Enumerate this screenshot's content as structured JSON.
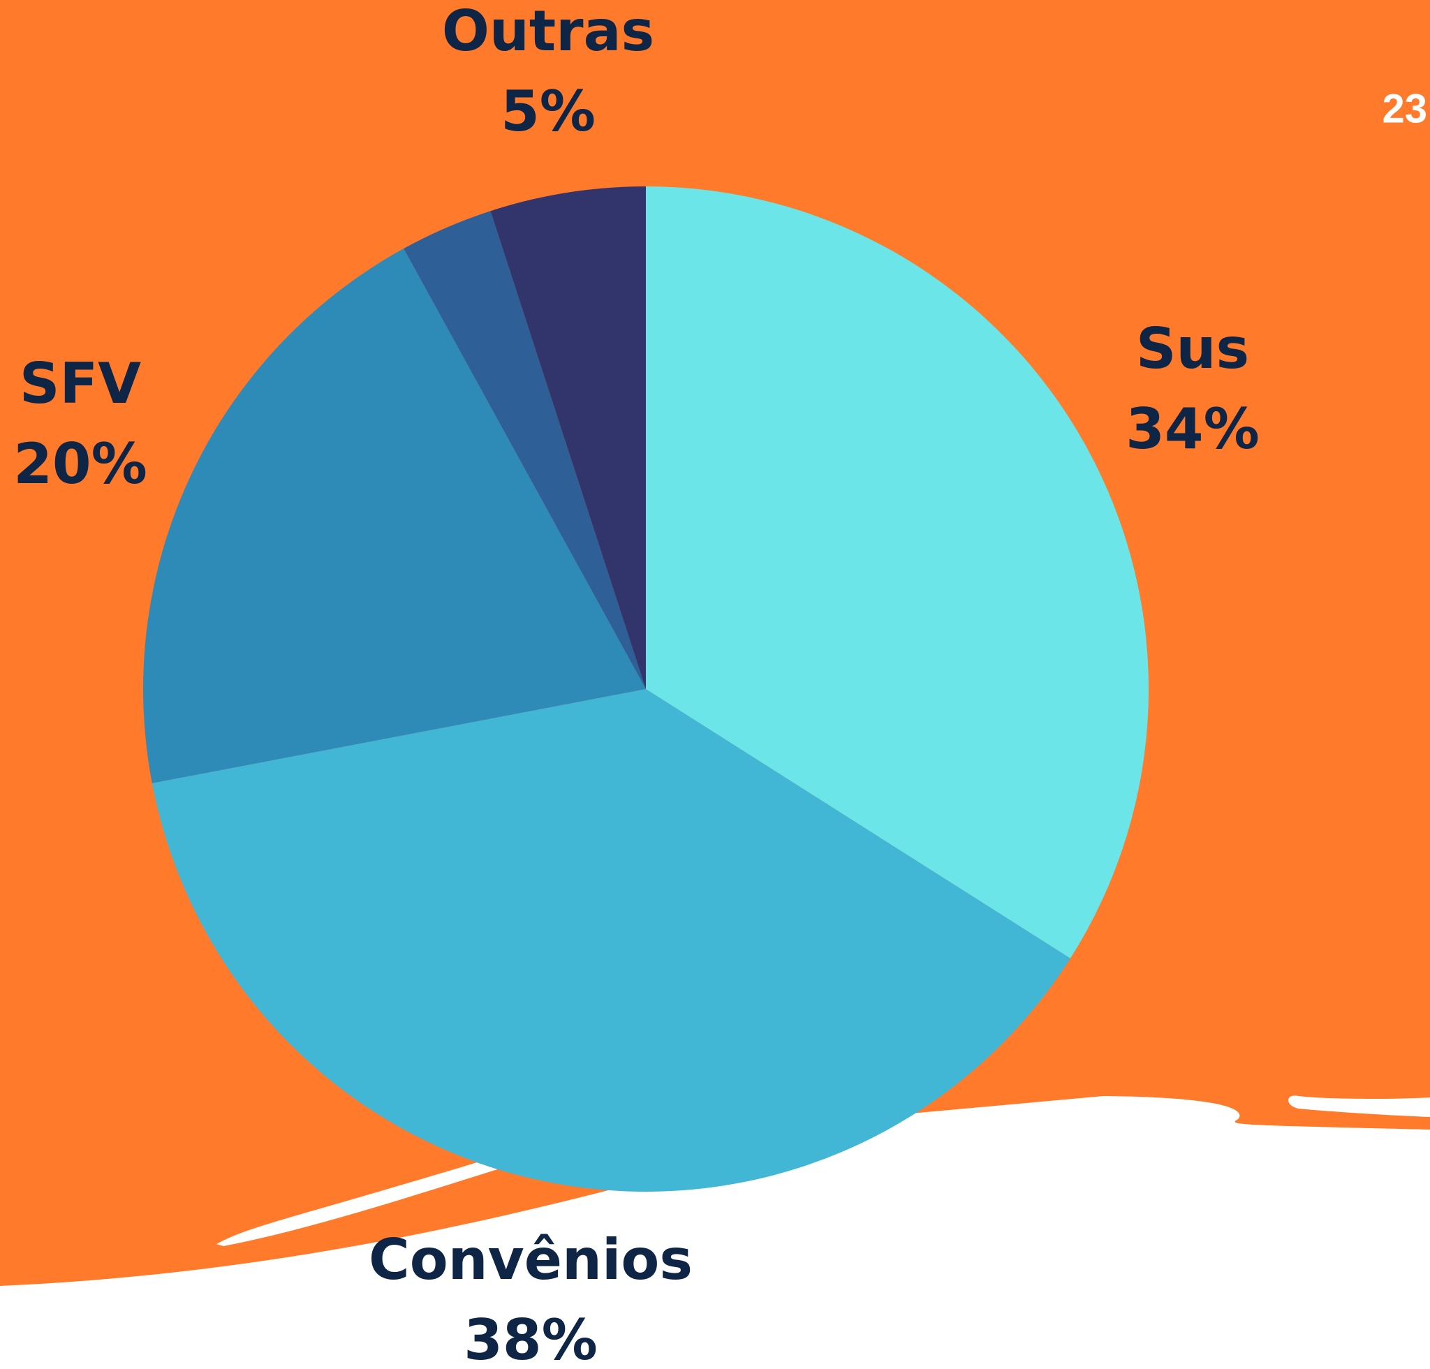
{
  "chart_data": {
    "type": "pie",
    "categories": [
      "Sus",
      "Convênios",
      "SFV",
      null,
      "Outras"
    ],
    "values": [
      34,
      38,
      20,
      3,
      5
    ],
    "value_labels": [
      "34%",
      "38%",
      "20%",
      null,
      "5%"
    ],
    "colors": [
      "#6ce5e8",
      "#41b6d5",
      "#2e8bb8",
      "#2e5f96",
      "#31356b"
    ],
    "start_angle": 0,
    "direction": "clockwise"
  },
  "corner_text": "23"
}
